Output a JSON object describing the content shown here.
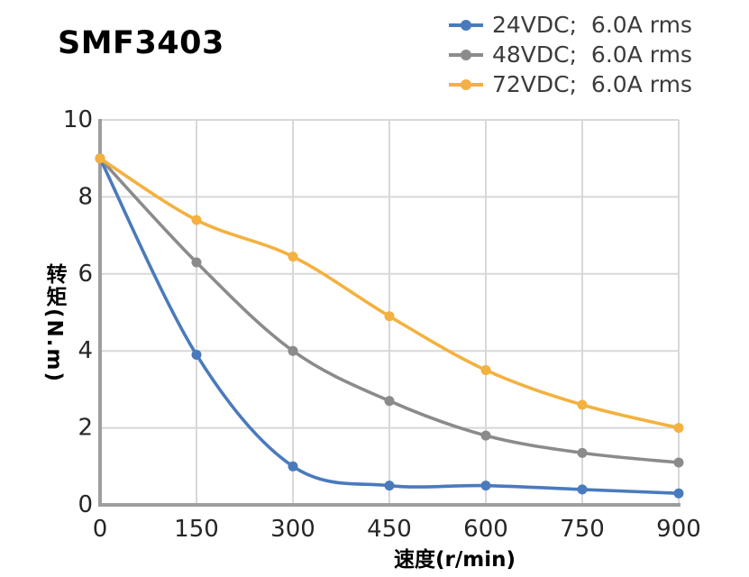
{
  "colors": {
    "grid": "#d8d8d8",
    "axis": "#9e9e9e",
    "tick_text": "#262626",
    "legend_text": "#3c3c3c",
    "title_text": "#000000",
    "background": "#ffffff"
  },
  "chart_data": {
    "type": "line",
    "title": "SMF3403",
    "xlabel": "速度(r/min)",
    "ylabel": "转矩(N.m)",
    "x": [
      0,
      150,
      300,
      450,
      600,
      750,
      900
    ],
    "xticks": [
      0,
      150,
      300,
      450,
      600,
      750,
      900
    ],
    "yticks": [
      0,
      2,
      4,
      6,
      8,
      10
    ],
    "xlim": [
      0,
      900
    ],
    "ylim": [
      0,
      10
    ],
    "grid": true,
    "smooth": true,
    "legend_position": "top-right",
    "series": [
      {
        "name": "24VDC;  6.0A rms",
        "color": "#4a7abc",
        "values": [
          9.0,
          3.9,
          1.0,
          0.5,
          0.5,
          0.4,
          0.3
        ]
      },
      {
        "name": "48VDC;  6.0A rms",
        "color": "#8b8b8b",
        "values": [
          9.0,
          6.3,
          4.0,
          2.7,
          1.8,
          1.35,
          1.1
        ]
      },
      {
        "name": "72VDC;  6.0A rms",
        "color": "#f3b13f",
        "values": [
          9.0,
          7.4,
          6.45,
          4.9,
          3.5,
          2.6,
          2.0
        ]
      }
    ]
  }
}
